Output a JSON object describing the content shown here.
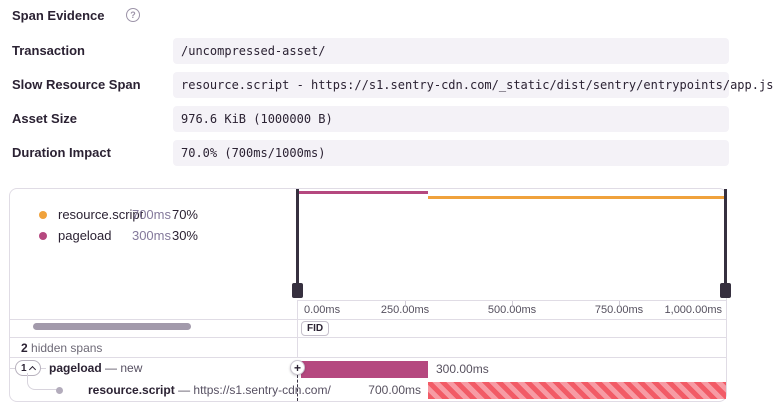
{
  "header": {
    "title": "Span Evidence",
    "help_icon": "?"
  },
  "fields": [
    {
      "label": "Transaction",
      "value": "/uncompressed-asset/"
    },
    {
      "label": "Slow Resource Span",
      "value": "resource.script - https://s1.sentry-cdn.com/_static/dist/sentry/entrypoints/app.js"
    },
    {
      "label": "Asset Size",
      "value": "976.6 KiB (1000000 B)"
    },
    {
      "label": "Duration Impact",
      "value": "70.0% (700ms/1000ms)"
    }
  ],
  "panel": {
    "legend": {
      "items": [
        {
          "name": "resource.script",
          "duration": "700ms",
          "percent": "70%",
          "color": "#f0a23c"
        },
        {
          "name": "pageload",
          "duration": "300ms",
          "percent": "30%",
          "color": "#b5487f"
        }
      ]
    },
    "minimap": {
      "x_range_ms": [
        0,
        1000
      ],
      "series": [
        {
          "name": "pageload",
          "start_ms": 0,
          "end_ms": 300,
          "color": "#b5487f"
        },
        {
          "name": "resource.script",
          "start_ms": 300,
          "end_ms": 1000,
          "color": "#f0a23c"
        }
      ]
    },
    "axis": {
      "ticks": [
        "0.00ms",
        "250.00ms",
        "500.00ms",
        "750.00ms",
        "1,000.00ms"
      ]
    },
    "fid_label": "FID",
    "hidden_spans": {
      "count": "2",
      "label": "hidden spans"
    },
    "tree": {
      "rows": [
        {
          "badge": "1",
          "op": "pageload",
          "sep": "—",
          "desc": "new",
          "duration": "300.00ms",
          "start_pct": 0,
          "width_pct": 30
        },
        {
          "op": "resource.script",
          "sep": "—",
          "desc": "https://s1.sentry-cdn.com/",
          "duration": "700.00ms",
          "start_pct": 30,
          "width_pct": 70
        }
      ]
    }
  },
  "colors": {
    "accent_orange": "#f0a23c",
    "accent_pink": "#b5487f",
    "hatch_red": "#f25b66",
    "hatch_light": "#f79ba4",
    "text_primary": "#2b2233",
    "text_secondary": "#84799b",
    "border": "#e0dce5",
    "value_bg": "#f4f2f7",
    "handle": "#36303f"
  }
}
